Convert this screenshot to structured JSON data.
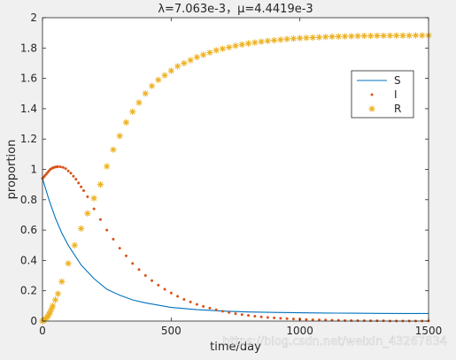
{
  "chart_data": {
    "type": "line",
    "title": "λ=7.063e-3，μ=4.4419e-3",
    "xlabel": "time/day",
    "ylabel": "proportion",
    "xlim": [
      0,
      1500
    ],
    "ylim": [
      0,
      2
    ],
    "xticks": [
      "0",
      "500",
      "1000",
      "1500"
    ],
    "yticks": [
      "0",
      "0.2",
      "0.4",
      "0.6",
      "0.8",
      "1",
      "1.2",
      "1.4",
      "1.6",
      "1.8",
      "2"
    ],
    "grid": false,
    "legend_position": "upper-right",
    "series": [
      {
        "name": "S",
        "style": "solid-line",
        "color": "#0072BD",
        "x": [
          0,
          25,
          50,
          75,
          100,
          150,
          200,
          250,
          300,
          350,
          400,
          500,
          600,
          700,
          800,
          900,
          1000,
          1100,
          1200,
          1300,
          1400,
          1500
        ],
        "values": [
          0.94,
          0.8,
          0.68,
          0.58,
          0.5,
          0.37,
          0.28,
          0.21,
          0.17,
          0.14,
          0.12,
          0.09,
          0.075,
          0.066,
          0.06,
          0.057,
          0.055,
          0.053,
          0.052,
          0.051,
          0.05,
          0.05
        ]
      },
      {
        "name": "I",
        "style": "dot-markers",
        "color": "#D95319",
        "x": [
          0,
          5,
          10,
          15,
          20,
          25,
          30,
          35,
          40,
          45,
          50,
          55,
          60,
          70,
          80,
          90,
          100,
          110,
          120,
          130,
          140,
          150,
          160,
          175,
          200,
          225,
          250,
          275,
          300,
          325,
          350,
          375,
          400,
          425,
          450,
          475,
          500,
          525,
          550,
          575,
          600,
          625,
          650,
          675,
          700,
          725,
          750,
          775,
          800,
          825,
          850,
          875,
          900,
          925,
          950,
          975,
          1000,
          1025,
          1050,
          1075,
          1100,
          1125,
          1150,
          1175,
          1200,
          1225,
          1250,
          1275,
          1300,
          1325,
          1350,
          1375,
          1400,
          1425,
          1450,
          1475,
          1500
        ],
        "values": [
          0.94,
          0.95,
          0.96,
          0.97,
          0.98,
          0.99,
          1.0,
          1.005,
          1.01,
          1.013,
          1.015,
          1.017,
          1.018,
          1.017,
          1.013,
          1.005,
          0.99,
          0.975,
          0.955,
          0.935,
          0.91,
          0.885,
          0.86,
          0.82,
          0.74,
          0.67,
          0.6,
          0.54,
          0.48,
          0.43,
          0.38,
          0.34,
          0.3,
          0.267,
          0.237,
          0.21,
          0.185,
          0.163,
          0.143,
          0.126,
          0.11,
          0.097,
          0.085,
          0.074,
          0.065,
          0.057,
          0.049,
          0.043,
          0.037,
          0.032,
          0.028,
          0.024,
          0.021,
          0.018,
          0.016,
          0.014,
          0.012,
          0.01,
          0.009,
          0.008,
          0.007,
          0.006,
          0.005,
          0.004,
          0.004,
          0.003,
          0.003,
          0.002,
          0.002,
          0.002,
          0.001,
          0.001,
          0.001,
          0.001,
          0.001,
          0.001,
          0.001
        ]
      },
      {
        "name": "R",
        "style": "asterisk-markers",
        "color": "#EDB120",
        "x": [
          0,
          5,
          10,
          15,
          20,
          25,
          30,
          35,
          40,
          50,
          60,
          75,
          100,
          125,
          150,
          175,
          200,
          225,
          250,
          275,
          300,
          325,
          350,
          375,
          400,
          425,
          450,
          475,
          500,
          525,
          550,
          575,
          600,
          625,
          650,
          675,
          700,
          725,
          750,
          775,
          800,
          825,
          850,
          875,
          900,
          925,
          950,
          975,
          1000,
          1025,
          1050,
          1075,
          1100,
          1125,
          1150,
          1175,
          1200,
          1225,
          1250,
          1275,
          1300,
          1325,
          1350,
          1375,
          1400,
          1425,
          1450,
          1475,
          1500
        ],
        "values": [
          0.0,
          0.005,
          0.012,
          0.02,
          0.03,
          0.045,
          0.06,
          0.08,
          0.1,
          0.14,
          0.18,
          0.26,
          0.38,
          0.5,
          0.61,
          0.71,
          0.81,
          0.9,
          1.02,
          1.13,
          1.22,
          1.31,
          1.38,
          1.44,
          1.5,
          1.55,
          1.59,
          1.62,
          1.65,
          1.68,
          1.7,
          1.72,
          1.74,
          1.755,
          1.77,
          1.785,
          1.795,
          1.805,
          1.815,
          1.823,
          1.83,
          1.836,
          1.842,
          1.847,
          1.851,
          1.855,
          1.859,
          1.862,
          1.865,
          1.867,
          1.869,
          1.871,
          1.873,
          1.875,
          1.876,
          1.877,
          1.878,
          1.879,
          1.88,
          1.88,
          1.881,
          1.881,
          1.882,
          1.882,
          1.882,
          1.882,
          1.883,
          1.883,
          1.883
        ]
      }
    ]
  },
  "watermark": "https://blog.csdn.net/weixin_43267834",
  "colors": {
    "figure_background": "#f0f0f0",
    "axes_background": "#ffffff",
    "axis_color": "#262626"
  }
}
